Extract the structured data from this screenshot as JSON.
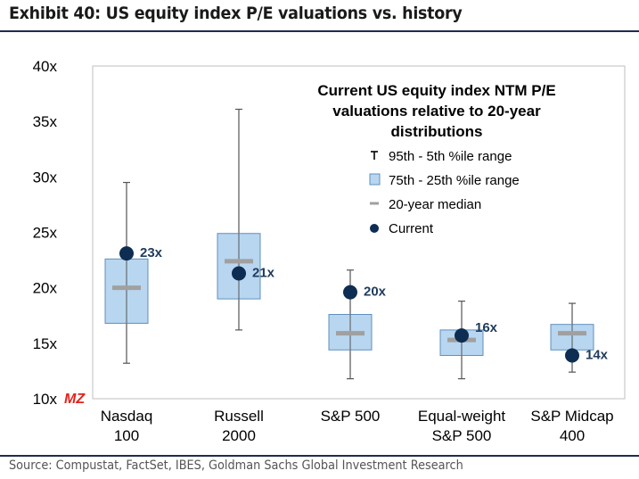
{
  "header": {
    "title": "Exhibit 40: US equity index P/E valuations vs. history"
  },
  "footer": {
    "source": "Source: Compustat, FactSet, IBES, Goldman Sachs Global Investment Research"
  },
  "watermark": "MZ",
  "colors": {
    "box_fill": "#b8d6ef",
    "box_stroke": "#5f8fbf",
    "median": "#a0a0a0",
    "current": "#0d2d52",
    "whisker": "#555555",
    "label": "#1f3b5c",
    "rule": "#1f2d4d"
  },
  "chart_data": {
    "type": "box",
    "title": "Current US equity index NTM P/E valuations relative to 20-year distributions",
    "title_lines": [
      "Current US equity index NTM P/E",
      "valuations relative to 20-year",
      "distributions"
    ],
    "ylim": [
      10,
      40
    ],
    "yticks": [
      10,
      15,
      20,
      25,
      30,
      35,
      40
    ],
    "ytick_labels": [
      "10x",
      "15x",
      "20x",
      "25x",
      "30x",
      "35x",
      "40x"
    ],
    "legend": [
      "95th - 5th %ile range",
      "75th - 25th %ile range",
      "20-year median",
      "Current"
    ],
    "legend_position": "top-right",
    "categories": [
      {
        "label": "Nasdaq\n100",
        "lines": [
          "Nasdaq",
          "100"
        ],
        "p5": 13.2,
        "p25": 16.8,
        "median": 20.0,
        "p75": 22.6,
        "p95": 29.5,
        "current": 23.1,
        "current_label": "23x"
      },
      {
        "label": "Russell\n2000",
        "lines": [
          "Russell",
          "2000"
        ],
        "p5": 16.2,
        "p25": 19.0,
        "median": 22.4,
        "p75": 24.9,
        "p95": 36.1,
        "current": 21.3,
        "current_label": "21x"
      },
      {
        "label": "S&P 500",
        "lines": [
          "S&P 500"
        ],
        "p5": 11.8,
        "p25": 14.4,
        "median": 15.9,
        "p75": 17.6,
        "p95": 21.6,
        "current": 19.6,
        "current_label": "20x"
      },
      {
        "label": "Equal-weight\nS&P 500",
        "lines": [
          "Equal-weight",
          "S&P 500"
        ],
        "p5": 11.8,
        "p25": 13.9,
        "median": 15.3,
        "p75": 16.2,
        "p95": 18.8,
        "current": 15.7,
        "current_label": "16x"
      },
      {
        "label": "S&P Midcap\n400",
        "lines": [
          "S&P Midcap",
          "400"
        ],
        "p5": 12.4,
        "p25": 14.4,
        "median": 15.9,
        "p75": 16.7,
        "p95": 18.6,
        "current": 13.9,
        "current_label": "14x"
      }
    ]
  }
}
